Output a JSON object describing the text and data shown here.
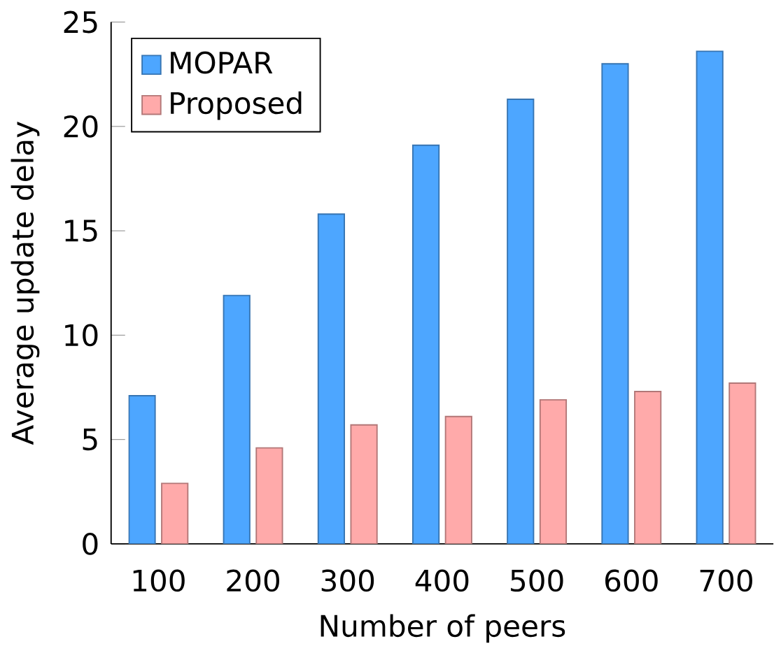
{
  "chart_data": {
    "type": "bar",
    "xlabel": "Number of peers",
    "ylabel": "Average update delay",
    "categories": [
      "100",
      "200",
      "300",
      "400",
      "500",
      "600",
      "700"
    ],
    "series": [
      {
        "name": "MOPAR",
        "color": "#4da6ff",
        "values": [
          7.1,
          11.9,
          15.8,
          19.1,
          21.3,
          23,
          23.6
        ]
      },
      {
        "name": "Proposed",
        "color": "#ffaaaa",
        "values": [
          2.9,
          4.6,
          5.7,
          6.1,
          6.9,
          7.3,
          7.7
        ]
      }
    ],
    "ylim": [
      0,
      25
    ],
    "yticks": [
      0,
      5,
      10,
      15,
      20,
      25
    ],
    "legend": "top left"
  }
}
